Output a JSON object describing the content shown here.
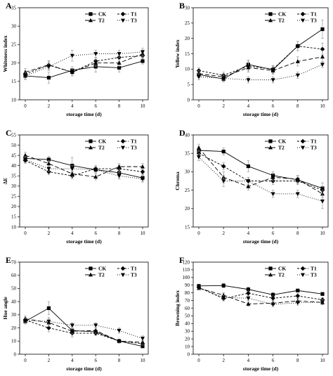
{
  "figure": {
    "series_styles": [
      {
        "name": "CK",
        "dash": "",
        "marker": "square"
      },
      {
        "name": "T1",
        "dash": "3,2",
        "marker": "diamond"
      },
      {
        "name": "T2",
        "dash": "6,3",
        "marker": "triangle-up"
      },
      {
        "name": "T3",
        "dash": "1,2",
        "marker": "triangle-down"
      }
    ],
    "line_color": "#000000"
  },
  "chart_data": [
    {
      "type": "line",
      "panel": "A",
      "ylabel": "Whiteness index",
      "xlabel": "storage time (d)",
      "x": [
        0,
        2,
        4,
        6,
        8,
        10
      ],
      "xticks": [
        "0",
        "2",
        "4",
        "6",
        "8",
        "10"
      ],
      "ylim": [
        10,
        35
      ],
      "yticks": [
        "10",
        "15",
        "20",
        "25",
        "30",
        "35"
      ],
      "legend": "top-left",
      "series": [
        {
          "name": "CK",
          "values": [
            16.5,
            16.0,
            18.0,
            19.0,
            18.7,
            20.5
          ],
          "err": [
            0.8,
            1.5,
            1.0,
            1.5,
            1.2,
            0.8
          ]
        },
        {
          "name": "T1",
          "values": [
            17.0,
            19.4,
            17.5,
            20.5,
            21.5,
            22.0
          ],
          "err": [
            0.8,
            1.2,
            1.0,
            0.8,
            1.0,
            0.8
          ]
        },
        {
          "name": "T2",
          "values": [
            17.5,
            19.5,
            17.5,
            20.0,
            20.0,
            22.5
          ],
          "err": [
            1.0,
            1.0,
            1.0,
            1.0,
            1.0,
            1.0
          ]
        },
        {
          "name": "T3",
          "values": [
            16.5,
            19.0,
            22.0,
            22.5,
            22.5,
            23.0
          ],
          "err": [
            1.0,
            1.0,
            1.5,
            1.0,
            1.0,
            1.0
          ]
        }
      ]
    },
    {
      "type": "line",
      "panel": "B",
      "ylabel": "Yellow index",
      "xlabel": "storage time (d)",
      "x": [
        0,
        2,
        4,
        6,
        8,
        10
      ],
      "xticks": [
        "0",
        "2",
        "4",
        "6",
        "8",
        "10"
      ],
      "ylim": [
        0,
        30
      ],
      "yticks": [
        "0",
        "5",
        "10",
        "15",
        "20",
        "25",
        "30"
      ],
      "legend": "top-left",
      "series": [
        {
          "name": "CK",
          "values": [
            8.2,
            6.8,
            11.5,
            9.8,
            17.5,
            23.0
          ],
          "err": [
            1.0,
            1.0,
            1.5,
            1.2,
            1.5,
            3.0
          ]
        },
        {
          "name": "T1",
          "values": [
            9.5,
            8.0,
            11.0,
            10.0,
            17.5,
            16.5
          ],
          "err": [
            1.0,
            1.0,
            1.5,
            1.2,
            1.5,
            2.0
          ]
        },
        {
          "name": "T2",
          "values": [
            8.5,
            7.5,
            10.5,
            9.5,
            12.5,
            14.0
          ],
          "err": [
            1.0,
            1.0,
            1.5,
            1.2,
            1.5,
            2.0
          ]
        },
        {
          "name": "T3",
          "values": [
            7.5,
            7.0,
            6.5,
            6.5,
            8.0,
            11.5
          ],
          "err": [
            1.0,
            1.0,
            1.0,
            1.0,
            1.0,
            1.0
          ]
        }
      ]
    },
    {
      "type": "line",
      "panel": "C",
      "ylabel": "ΔE",
      "xlabel": "storage time (d)",
      "x": [
        0,
        2,
        4,
        6,
        8,
        10
      ],
      "xticks": [
        "0",
        "2",
        "4",
        "6",
        "8",
        "10"
      ],
      "ylim": [
        10,
        55
      ],
      "yticks": [
        "10",
        "15",
        "20",
        "25",
        "30",
        "35",
        "40",
        "45",
        "50",
        "55"
      ],
      "legend": "top-right",
      "series": [
        {
          "name": "CK",
          "values": [
            43.5,
            43.0,
            40.0,
            38.0,
            36.5,
            34.0
          ],
          "err": [
            1.5,
            1.5,
            4.0,
            1.5,
            3.0,
            2.0
          ]
        },
        {
          "name": "T1",
          "values": [
            42.5,
            37.0,
            35.0,
            38.5,
            38.5,
            37.0
          ],
          "err": [
            1.5,
            1.5,
            1.5,
            1.5,
            1.5,
            1.5
          ]
        },
        {
          "name": "T2",
          "values": [
            45.0,
            41.0,
            36.0,
            34.5,
            39.5,
            39.5
          ],
          "err": [
            1.5,
            1.5,
            1.5,
            1.5,
            1.5,
            1.5
          ]
        },
        {
          "name": "T3",
          "values": [
            43.0,
            38.5,
            38.5,
            38.0,
            35.0,
            33.5
          ],
          "err": [
            1.5,
            1.5,
            1.5,
            1.5,
            1.5,
            1.5
          ]
        }
      ]
    },
    {
      "type": "line",
      "panel": "D",
      "ylabel": "Chroma",
      "xlabel": "storage time (d)",
      "x": [
        0,
        2,
        4,
        6,
        8,
        10
      ],
      "xticks": [
        "0",
        "2",
        "4",
        "6",
        "8",
        "10"
      ],
      "ylim": [
        15,
        40
      ],
      "yticks": [
        "15",
        "20",
        "25",
        "30",
        "35",
        "40"
      ],
      "legend": "top-right",
      "series": [
        {
          "name": "CK",
          "values": [
            35.8,
            35.5,
            31.5,
            29.0,
            27.8,
            25.5
          ],
          "err": [
            1.0,
            1.0,
            1.5,
            1.0,
            1.0,
            1.5
          ]
        },
        {
          "name": "T1",
          "values": [
            35.0,
            31.5,
            27.5,
            27.5,
            27.5,
            25.0
          ],
          "err": [
            1.0,
            1.0,
            1.0,
            1.0,
            1.0,
            1.0
          ]
        },
        {
          "name": "T2",
          "values": [
            36.5,
            28.5,
            26.0,
            28.5,
            28.0,
            24.0
          ],
          "err": [
            1.0,
            1.5,
            1.0,
            1.0,
            1.0,
            1.0
          ]
        },
        {
          "name": "T3",
          "values": [
            34.0,
            27.5,
            27.5,
            24.0,
            24.0,
            22.0
          ],
          "err": [
            1.0,
            1.5,
            1.0,
            1.0,
            1.0,
            2.0
          ]
        }
      ]
    },
    {
      "type": "line",
      "panel": "E",
      "ylabel": "Hue angle",
      "xlabel": "storage time (d)",
      "x": [
        0,
        2,
        4,
        6,
        8,
        10
      ],
      "xticks": [
        "0",
        "2",
        "4",
        "6",
        "8",
        "10"
      ],
      "ylim": [
        0,
        70
      ],
      "yticks": [
        "0",
        "10",
        "20",
        "30",
        "40",
        "50",
        "60",
        "70"
      ],
      "legend": "top-right",
      "series": [
        {
          "name": "CK",
          "values": [
            25.0,
            35.0,
            18.0,
            17.0,
            10.0,
            6.0
          ],
          "err": [
            2.0,
            5.0,
            3.0,
            2.0,
            1.5,
            1.0
          ]
        },
        {
          "name": "T1",
          "values": [
            26.0,
            20.0,
            16.0,
            16.0,
            10.0,
            8.0
          ],
          "err": [
            2.0,
            3.0,
            3.0,
            2.0,
            1.5,
            1.5
          ]
        },
        {
          "name": "T2",
          "values": [
            27.0,
            24.0,
            17.5,
            18.0,
            10.0,
            9.0
          ],
          "err": [
            2.0,
            3.0,
            2.0,
            2.0,
            1.5,
            1.5
          ]
        },
        {
          "name": "T3",
          "values": [
            25.5,
            25.0,
            22.0,
            22.0,
            18.0,
            12.0
          ],
          "err": [
            2.0,
            3.0,
            2.0,
            2.0,
            2.0,
            2.0
          ]
        }
      ]
    },
    {
      "type": "line",
      "panel": "F",
      "ylabel": "Browning index",
      "xlabel": "storage time (d)",
      "x": [
        0,
        2,
        4,
        6,
        8,
        10
      ],
      "xticks": [
        "0",
        "2",
        "4",
        "6",
        "8",
        "10"
      ],
      "ylim": [
        0,
        120
      ],
      "yticks": [
        "0",
        "10",
        "20",
        "30",
        "40",
        "50",
        "60",
        "70",
        "80",
        "90",
        "100",
        "110",
        "120"
      ],
      "legend": "top-right",
      "series": [
        {
          "name": "CK",
          "values": [
            89.0,
            89.5,
            84.5,
            77.5,
            83.0,
            78.5
          ],
          "err": [
            2.0,
            3.0,
            3.0,
            3.0,
            2.0,
            2.0
          ]
        },
        {
          "name": "T1",
          "values": [
            87.0,
            72.5,
            79.5,
            73.0,
            76.0,
            71.0
          ],
          "err": [
            2.0,
            3.0,
            3.0,
            3.0,
            3.0,
            3.0
          ]
        },
        {
          "name": "T2",
          "values": [
            86.0,
            77.0,
            65.5,
            66.5,
            69.5,
            67.5
          ],
          "err": [
            2.0,
            3.0,
            3.0,
            3.0,
            3.0,
            3.0
          ]
        },
        {
          "name": "T3",
          "values": [
            87.0,
            74.0,
            73.0,
            65.0,
            67.0,
            68.0
          ],
          "err": [
            2.0,
            3.0,
            3.0,
            3.0,
            3.0,
            3.0
          ]
        }
      ]
    }
  ]
}
